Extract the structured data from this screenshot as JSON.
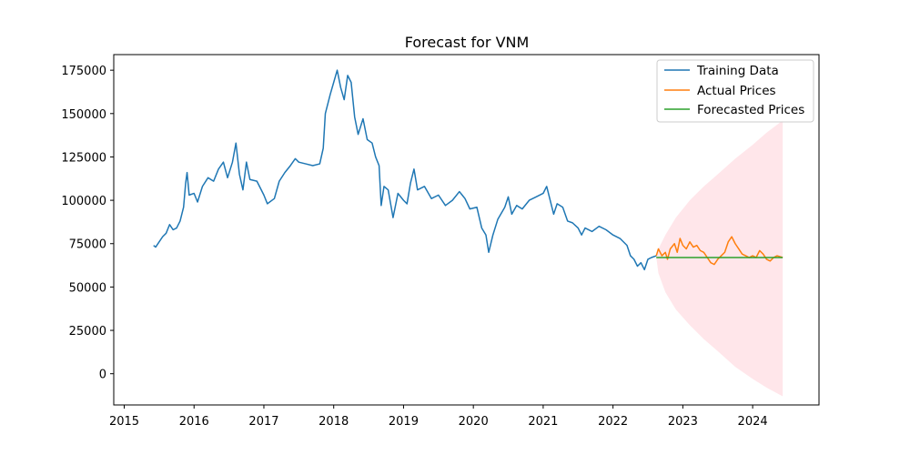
{
  "chart_data": {
    "type": "line",
    "title": "Forecast for VNM",
    "xlabel": "",
    "ylabel": "",
    "xlim": [
      2014.85,
      2024.95
    ],
    "ylim": [
      -18000,
      184000
    ],
    "x_ticks": [
      2015,
      2016,
      2017,
      2018,
      2019,
      2020,
      2021,
      2022,
      2023,
      2024
    ],
    "y_ticks": [
      0,
      25000,
      50000,
      75000,
      100000,
      125000,
      150000,
      175000
    ],
    "grid": false,
    "legend_position": "top-right",
    "series": [
      {
        "name": "Training Data",
        "color": "#1f77b4",
        "points": [
          [
            2015.42,
            74000
          ],
          [
            2015.45,
            73000
          ],
          [
            2015.5,
            76000
          ],
          [
            2015.55,
            79000
          ],
          [
            2015.6,
            81000
          ],
          [
            2015.65,
            86000
          ],
          [
            2015.7,
            83000
          ],
          [
            2015.75,
            84000
          ],
          [
            2015.8,
            88000
          ],
          [
            2015.85,
            96000
          ],
          [
            2015.88,
            110000
          ],
          [
            2015.9,
            116000
          ],
          [
            2015.93,
            103000
          ],
          [
            2016.0,
            104000
          ],
          [
            2016.05,
            99000
          ],
          [
            2016.12,
            108000
          ],
          [
            2016.2,
            113000
          ],
          [
            2016.28,
            111000
          ],
          [
            2016.35,
            118000
          ],
          [
            2016.42,
            122000
          ],
          [
            2016.48,
            113000
          ],
          [
            2016.55,
            122000
          ],
          [
            2016.6,
            133000
          ],
          [
            2016.65,
            115000
          ],
          [
            2016.7,
            106000
          ],
          [
            2016.75,
            122000
          ],
          [
            2016.8,
            112000
          ],
          [
            2016.9,
            111000
          ],
          [
            2017.0,
            103000
          ],
          [
            2017.05,
            98000
          ],
          [
            2017.15,
            101000
          ],
          [
            2017.22,
            111000
          ],
          [
            2017.3,
            116000
          ],
          [
            2017.38,
            120000
          ],
          [
            2017.45,
            124000
          ],
          [
            2017.5,
            122000
          ],
          [
            2017.6,
            121000
          ],
          [
            2017.7,
            120000
          ],
          [
            2017.8,
            121000
          ],
          [
            2017.85,
            130000
          ],
          [
            2017.88,
            150000
          ],
          [
            2017.95,
            161000
          ],
          [
            2018.0,
            168000
          ],
          [
            2018.05,
            175000
          ],
          [
            2018.1,
            165000
          ],
          [
            2018.15,
            158000
          ],
          [
            2018.2,
            172000
          ],
          [
            2018.25,
            168000
          ],
          [
            2018.3,
            148000
          ],
          [
            2018.35,
            138000
          ],
          [
            2018.42,
            147000
          ],
          [
            2018.48,
            135000
          ],
          [
            2018.55,
            133000
          ],
          [
            2018.6,
            125000
          ],
          [
            2018.65,
            120000
          ],
          [
            2018.68,
            97000
          ],
          [
            2018.72,
            108000
          ],
          [
            2018.78,
            106000
          ],
          [
            2018.85,
            90000
          ],
          [
            2018.92,
            104000
          ],
          [
            2019.0,
            100000
          ],
          [
            2019.05,
            98000
          ],
          [
            2019.1,
            110000
          ],
          [
            2019.15,
            118000
          ],
          [
            2019.2,
            106000
          ],
          [
            2019.3,
            108000
          ],
          [
            2019.4,
            101000
          ],
          [
            2019.5,
            103000
          ],
          [
            2019.6,
            97000
          ],
          [
            2019.7,
            100000
          ],
          [
            2019.8,
            105000
          ],
          [
            2019.88,
            101000
          ],
          [
            2019.95,
            95000
          ],
          [
            2020.05,
            96000
          ],
          [
            2020.12,
            84000
          ],
          [
            2020.18,
            80000
          ],
          [
            2020.22,
            70000
          ],
          [
            2020.28,
            80000
          ],
          [
            2020.35,
            89000
          ],
          [
            2020.45,
            96000
          ],
          [
            2020.5,
            102000
          ],
          [
            2020.55,
            92000
          ],
          [
            2020.62,
            97000
          ],
          [
            2020.7,
            95000
          ],
          [
            2020.8,
            100000
          ],
          [
            2020.9,
            102000
          ],
          [
            2021.0,
            104000
          ],
          [
            2021.05,
            108000
          ],
          [
            2021.1,
            100000
          ],
          [
            2021.15,
            92000
          ],
          [
            2021.2,
            98000
          ],
          [
            2021.28,
            96000
          ],
          [
            2021.35,
            88000
          ],
          [
            2021.42,
            87000
          ],
          [
            2021.5,
            84000
          ],
          [
            2021.55,
            80000
          ],
          [
            2021.6,
            84000
          ],
          [
            2021.7,
            82000
          ],
          [
            2021.8,
            85000
          ],
          [
            2021.9,
            83000
          ],
          [
            2022.0,
            80000
          ],
          [
            2022.1,
            78000
          ],
          [
            2022.2,
            74000
          ],
          [
            2022.25,
            68000
          ],
          [
            2022.3,
            66000
          ],
          [
            2022.35,
            62000
          ],
          [
            2022.4,
            64000
          ],
          [
            2022.45,
            60000
          ],
          [
            2022.5,
            66000
          ],
          [
            2022.55,
            67000
          ],
          [
            2022.62,
            68000
          ]
        ]
      },
      {
        "name": "Actual Prices",
        "color": "#ff7f0e",
        "points": [
          [
            2022.62,
            68000
          ],
          [
            2022.65,
            72000
          ],
          [
            2022.7,
            68000
          ],
          [
            2022.75,
            70000
          ],
          [
            2022.78,
            66000
          ],
          [
            2022.82,
            72000
          ],
          [
            2022.88,
            75000
          ],
          [
            2022.92,
            70000
          ],
          [
            2022.96,
            78000
          ],
          [
            2023.0,
            74000
          ],
          [
            2023.05,
            72000
          ],
          [
            2023.1,
            76000
          ],
          [
            2023.15,
            73000
          ],
          [
            2023.2,
            74000
          ],
          [
            2023.25,
            71000
          ],
          [
            2023.3,
            70000
          ],
          [
            2023.35,
            67000
          ],
          [
            2023.4,
            64000
          ],
          [
            2023.45,
            63000
          ],
          [
            2023.5,
            66000
          ],
          [
            2023.55,
            68000
          ],
          [
            2023.6,
            70000
          ],
          [
            2023.65,
            76000
          ],
          [
            2023.7,
            79000
          ],
          [
            2023.75,
            75000
          ],
          [
            2023.8,
            72000
          ],
          [
            2023.85,
            69000
          ],
          [
            2023.9,
            68000
          ],
          [
            2023.95,
            67000
          ],
          [
            2024.0,
            68000
          ],
          [
            2024.05,
            67000
          ],
          [
            2024.1,
            71000
          ],
          [
            2024.15,
            69000
          ],
          [
            2024.2,
            66000
          ],
          [
            2024.25,
            65000
          ],
          [
            2024.3,
            67000
          ],
          [
            2024.35,
            68000
          ],
          [
            2024.43,
            67000
          ]
        ]
      },
      {
        "name": "Forecasted Prices",
        "color": "#2ca02c",
        "points": [
          [
            2022.62,
            67000
          ],
          [
            2024.43,
            67000
          ]
        ]
      }
    ],
    "confidence_band": {
      "color": "#ffc0cb",
      "opacity": 0.4,
      "upper": [
        [
          2022.62,
          67000
        ],
        [
          2022.65,
          72000
        ],
        [
          2022.75,
          80000
        ],
        [
          2022.9,
          90000
        ],
        [
          2023.1,
          100000
        ],
        [
          2023.3,
          108000
        ],
        [
          2023.5,
          115000
        ],
        [
          2023.75,
          124000
        ],
        [
          2024.0,
          132000
        ],
        [
          2024.2,
          139000
        ],
        [
          2024.43,
          146000
        ]
      ],
      "lower": [
        [
          2022.62,
          67000
        ],
        [
          2022.65,
          58000
        ],
        [
          2022.75,
          47000
        ],
        [
          2022.9,
          37000
        ],
        [
          2023.1,
          28000
        ],
        [
          2023.3,
          20000
        ],
        [
          2023.5,
          13000
        ],
        [
          2023.75,
          4000
        ],
        [
          2024.0,
          -3000
        ],
        [
          2024.2,
          -8000
        ],
        [
          2024.43,
          -13000
        ]
      ]
    }
  }
}
